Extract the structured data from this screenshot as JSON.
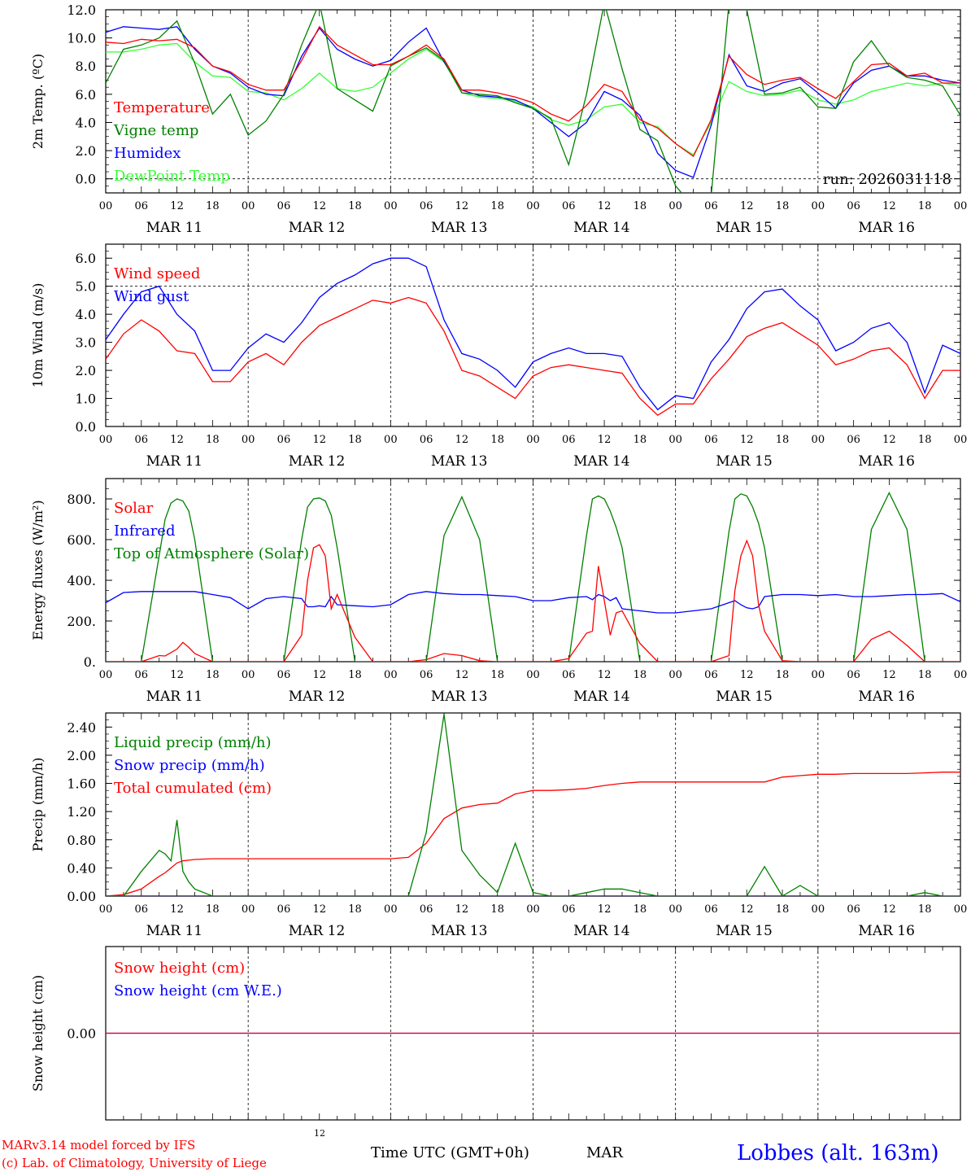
{
  "colors": {
    "red": "#ff0000",
    "green": "#008000",
    "blue": "#0000ff",
    "light_green": "#33ff33"
  },
  "footer": {
    "model_line": "MARv3.14 model forced by IFS",
    "lab_line": "(c) Lab. of Climatology, University of Liege",
    "small_label": "12",
    "time_label": "Time UTC (GMT+0h)",
    "month_label": "MAR",
    "station": "Lobbes (alt. 163m)"
  },
  "chart_data": [
    {
      "type": "line",
      "panel": "temperature",
      "ylabel": "2m Temp. (ºC)",
      "ylim": [
        -1.0,
        12.0
      ],
      "yticks": [
        "0.0",
        "2.0",
        "4.0",
        "6.0",
        "8.0",
        "10.0",
        "12.0"
      ],
      "reference_line": 0.0,
      "annotation": "run: 2026031118",
      "x_hours": [
        0,
        3,
        6,
        9,
        12,
        15,
        18,
        21,
        24,
        27,
        30,
        33,
        36,
        39,
        42,
        45,
        48,
        51,
        54,
        57,
        60,
        63,
        66,
        69,
        72,
        75,
        78,
        81,
        84,
        87,
        90,
        93,
        96,
        99,
        102,
        105,
        108,
        111,
        114,
        117,
        120,
        123,
        126,
        129,
        132,
        135,
        138,
        141,
        144
      ],
      "day_labels": [
        "MAR 11",
        "MAR 12",
        "MAR 13",
        "MAR 14",
        "MAR 15",
        "MAR 16"
      ],
      "hour_ticks": [
        "00",
        "06",
        "12",
        "18"
      ],
      "series": [
        {
          "name": "Temperature",
          "color": "#ff0000",
          "values": [
            9.7,
            9.6,
            9.9,
            9.8,
            9.9,
            9.3,
            8.0,
            7.6,
            6.7,
            6.3,
            6.3,
            8.4,
            10.8,
            9.5,
            8.8,
            8.1,
            8.1,
            8.7,
            9.5,
            8.5,
            6.3,
            6.3,
            6.1,
            5.8,
            5.4,
            4.6,
            4.1,
            5.2,
            6.7,
            6.2,
            4.2,
            3.6,
            2.5,
            1.6,
            4.2,
            8.7,
            7.4,
            6.7,
            7.0,
            7.2,
            6.4,
            5.7,
            6.9,
            8.1,
            8.2,
            7.3,
            7.5,
            6.8,
            6.8
          ]
        },
        {
          "name": "Vigne temp",
          "color": "#008000",
          "values": [
            6.8,
            9.2,
            9.5,
            10.0,
            11.2,
            8.2,
            4.6,
            6.0,
            3.1,
            4.1,
            6.0,
            9.5,
            12.5,
            6.4,
            5.6,
            4.8,
            8.0,
            8.7,
            9.3,
            8.4,
            6.1,
            6.0,
            5.9,
            5.4,
            5.0,
            4.3,
            1.0,
            6.0,
            12.5,
            7.8,
            3.5,
            2.7,
            -0.5,
            -2.0,
            -1.2,
            12.5,
            12.0,
            6.0,
            6.1,
            6.5,
            5.1,
            5.0,
            8.3,
            9.8,
            8.0,
            7.2,
            7.0,
            6.6,
            4.5
          ]
        },
        {
          "name": "Humidex",
          "color": "#0000ff",
          "values": [
            10.4,
            10.8,
            10.7,
            10.6,
            10.8,
            9.2,
            8.0,
            7.5,
            6.5,
            6.0,
            5.9,
            8.7,
            10.7,
            9.2,
            8.5,
            8.0,
            8.4,
            9.7,
            10.7,
            8.3,
            6.3,
            5.9,
            5.8,
            5.6,
            5.0,
            4.0,
            3.0,
            4.0,
            6.2,
            5.6,
            4.5,
            1.8,
            0.6,
            0.1,
            3.8,
            8.8,
            6.6,
            6.2,
            6.8,
            7.1,
            6.1,
            5.0,
            6.8,
            7.7,
            8.0,
            7.3,
            7.3,
            7.0,
            6.8
          ]
        },
        {
          "name": "DewPoint Temp",
          "color": "#33ff33",
          "values": [
            9.0,
            9.0,
            9.2,
            9.5,
            9.6,
            8.3,
            7.3,
            7.2,
            6.2,
            6.1,
            5.6,
            6.4,
            7.5,
            6.4,
            6.2,
            6.5,
            7.5,
            8.5,
            9.2,
            8.3,
            6.1,
            5.8,
            5.7,
            5.5,
            5.1,
            4.2,
            3.8,
            4.2,
            5.1,
            5.3,
            4.0,
            3.7,
            2.5,
            1.7,
            4.0,
            6.9,
            6.2,
            5.9,
            6.0,
            6.3,
            5.6,
            5.3,
            5.6,
            6.2,
            6.5,
            6.8,
            6.6,
            6.8,
            6.6
          ]
        }
      ]
    },
    {
      "type": "line",
      "panel": "wind",
      "ylabel": "10m Wind (m/s)",
      "ylim": [
        0.0,
        6.5
      ],
      "yticks": [
        "0.0",
        "1.0",
        "2.0",
        "3.0",
        "4.0",
        "5.0",
        "6.0"
      ],
      "reference_line": 5.0,
      "x_hours": [
        0,
        3,
        6,
        9,
        12,
        15,
        18,
        21,
        24,
        27,
        30,
        33,
        36,
        39,
        42,
        45,
        48,
        51,
        54,
        57,
        60,
        63,
        66,
        69,
        72,
        75,
        78,
        81,
        84,
        87,
        90,
        93,
        96,
        99,
        102,
        105,
        108,
        111,
        114,
        117,
        120,
        123,
        126,
        129,
        132,
        135,
        138,
        141,
        144
      ],
      "day_labels": [
        "MAR 11",
        "MAR 12",
        "MAR 13",
        "MAR 14",
        "MAR 15",
        "MAR 16"
      ],
      "hour_ticks": [
        "00",
        "06",
        "12",
        "18"
      ],
      "series": [
        {
          "name": "Wind speed",
          "color": "#ff0000",
          "values": [
            2.4,
            3.3,
            3.8,
            3.4,
            2.7,
            2.6,
            1.6,
            1.6,
            2.3,
            2.6,
            2.2,
            3.0,
            3.6,
            3.9,
            4.2,
            4.5,
            4.4,
            4.6,
            4.4,
            3.4,
            2.0,
            1.8,
            1.4,
            1.0,
            1.8,
            2.1,
            2.2,
            2.1,
            2.0,
            1.9,
            1.0,
            0.4,
            0.8,
            0.8,
            1.7,
            2.4,
            3.2,
            3.5,
            3.7,
            3.3,
            2.9,
            2.2,
            2.4,
            2.7,
            2.8,
            2.2,
            1.0,
            2.0,
            2.0
          ]
        },
        {
          "name": "Wind gust",
          "color": "#0000ff",
          "values": [
            3.1,
            4.0,
            4.8,
            5.0,
            4.0,
            3.4,
            2.0,
            2.0,
            2.8,
            3.3,
            3.0,
            3.7,
            4.6,
            5.1,
            5.4,
            5.8,
            6.0,
            6.0,
            5.7,
            3.8,
            2.6,
            2.4,
            2.0,
            1.4,
            2.3,
            2.6,
            2.8,
            2.6,
            2.6,
            2.5,
            1.4,
            0.6,
            1.1,
            1.0,
            2.3,
            3.1,
            4.2,
            4.8,
            4.9,
            4.3,
            3.8,
            2.7,
            3.0,
            3.5,
            3.7,
            3.0,
            1.2,
            2.9,
            2.6
          ]
        }
      ]
    },
    {
      "type": "line",
      "panel": "energy",
      "ylabel": "Energy fluxes (W/m²)",
      "ylim": [
        0,
        900
      ],
      "yticks": [
        "0.",
        "200.",
        "400.",
        "600.",
        "800."
      ],
      "x_hours": [
        0,
        3,
        6,
        9,
        10,
        11,
        12,
        13,
        14,
        15,
        18,
        21,
        24,
        27,
        30,
        33,
        34,
        35,
        36,
        37,
        38,
        39,
        42,
        45,
        48,
        51,
        54,
        57,
        60,
        63,
        66,
        69,
        72,
        75,
        78,
        81,
        82,
        83,
        84,
        85,
        86,
        87,
        90,
        93,
        96,
        99,
        102,
        105,
        106,
        107,
        108,
        109,
        110,
        111,
        114,
        117,
        120,
        123,
        126,
        129,
        132,
        135,
        138,
        141,
        144
      ],
      "day_labels": [
        "MAR 11",
        "MAR 12",
        "MAR 13",
        "MAR 14",
        "MAR 15",
        "MAR 16"
      ],
      "hour_ticks": [
        "00",
        "06",
        "12",
        "18"
      ],
      "series": [
        {
          "name": "Solar",
          "color": "#ff0000",
          "values": [
            0,
            0,
            0,
            30,
            28,
            45,
            62,
            95,
            70,
            40,
            0,
            0,
            0,
            0,
            0,
            130,
            400,
            560,
            575,
            520,
            260,
            330,
            120,
            0,
            0,
            0,
            10,
            40,
            30,
            5,
            0,
            0,
            0,
            0,
            15,
            140,
            150,
            470,
            300,
            130,
            240,
            250,
            90,
            0,
            0,
            0,
            0,
            30,
            350,
            520,
            595,
            520,
            280,
            150,
            5,
            0,
            0,
            0,
            0,
            110,
            150,
            80,
            0,
            0,
            0
          ]
        },
        {
          "name": "Infrared",
          "color": "#0000ff",
          "values": [
            290,
            340,
            345,
            345,
            345,
            345,
            345,
            345,
            345,
            345,
            330,
            315,
            260,
            310,
            320,
            310,
            270,
            270,
            275,
            270,
            320,
            280,
            275,
            270,
            280,
            330,
            345,
            335,
            330,
            330,
            325,
            320,
            300,
            300,
            315,
            320,
            305,
            330,
            320,
            300,
            315,
            260,
            250,
            240,
            240,
            250,
            260,
            290,
            300,
            280,
            265,
            260,
            270,
            320,
            330,
            330,
            325,
            330,
            320,
            320,
            325,
            330,
            330,
            335,
            295
          ]
        },
        {
          "name": "Top of Atmosphere (Solar)",
          "color": "#008000",
          "values": [
            0,
            0,
            0,
            520,
            700,
            780,
            800,
            790,
            740,
            600,
            0,
            0,
            0,
            0,
            0,
            600,
            760,
            800,
            805,
            790,
            720,
            560,
            0,
            0,
            0,
            0,
            0,
            620,
            810,
            600,
            0,
            0,
            0,
            0,
            0,
            620,
            800,
            815,
            800,
            740,
            660,
            560,
            0,
            0,
            0,
            0,
            0,
            640,
            800,
            825,
            815,
            760,
            680,
            560,
            0,
            0,
            0,
            0,
            0,
            650,
            830,
            650,
            0,
            0,
            0
          ]
        }
      ]
    },
    {
      "type": "line",
      "panel": "precip",
      "ylabel": "Precip (mm/h)",
      "ylim": [
        0.0,
        2.6
      ],
      "yticks": [
        "0.00",
        "0.40",
        "0.80",
        "1.20",
        "1.60",
        "2.00",
        "2.40"
      ],
      "x_hours": [
        0,
        3,
        6,
        9,
        10,
        11,
        12,
        13,
        14,
        15,
        18,
        21,
        24,
        27,
        30,
        33,
        36,
        39,
        42,
        45,
        48,
        51,
        54,
        57,
        60,
        63,
        66,
        69,
        72,
        75,
        78,
        81,
        84,
        87,
        90,
        93,
        96,
        99,
        102,
        105,
        108,
        111,
        114,
        117,
        120,
        123,
        126,
        129,
        132,
        135,
        138,
        141,
        144
      ],
      "day_labels": [
        "MAR 11",
        "MAR 12",
        "MAR 13",
        "MAR 14",
        "MAR 15",
        "MAR 16"
      ],
      "hour_ticks": [
        "00",
        "06",
        "12",
        "18"
      ],
      "series": [
        {
          "name": "Liquid precip (mm/h)",
          "color": "#008000",
          "values": [
            0,
            0,
            0.35,
            0.65,
            0.6,
            0.5,
            1.08,
            0.35,
            0.2,
            0.1,
            0,
            0,
            0,
            0,
            0,
            0,
            0,
            0,
            0,
            0,
            0,
            0,
            0.9,
            2.58,
            0.65,
            0.3,
            0.05,
            0.75,
            0.05,
            0,
            0,
            0.05,
            0.1,
            0.1,
            0.05,
            0,
            0,
            0,
            0,
            0,
            0,
            0.42,
            0,
            0.15,
            0,
            0,
            0,
            0,
            0,
            0,
            0.05,
            0,
            0
          ]
        },
        {
          "name": "Snow precip (mm/h)",
          "color": "#0000ff",
          "values": [
            0,
            0,
            0,
            0,
            0,
            0,
            0,
            0,
            0,
            0,
            0,
            0,
            0,
            0,
            0,
            0,
            0,
            0,
            0,
            0,
            0,
            0,
            0,
            0,
            0,
            0,
            0,
            0,
            0,
            0,
            0,
            0,
            0,
            0,
            0,
            0,
            0,
            0,
            0,
            0,
            0,
            0,
            0,
            0,
            0,
            0,
            0,
            0,
            0,
            0,
            0,
            0,
            0
          ]
        },
        {
          "name": "Total cumulated (cm)",
          "color": "#ff0000",
          "values": [
            0,
            0.02,
            0.1,
            0.28,
            0.33,
            0.4,
            0.47,
            0.5,
            0.51,
            0.52,
            0.53,
            0.53,
            0.53,
            0.53,
            0.53,
            0.53,
            0.53,
            0.53,
            0.53,
            0.53,
            0.53,
            0.55,
            0.75,
            1.1,
            1.25,
            1.3,
            1.32,
            1.45,
            1.5,
            1.5,
            1.51,
            1.53,
            1.57,
            1.6,
            1.62,
            1.62,
            1.62,
            1.62,
            1.62,
            1.62,
            1.62,
            1.62,
            1.69,
            1.71,
            1.73,
            1.73,
            1.74,
            1.74,
            1.74,
            1.74,
            1.75,
            1.76,
            1.76
          ]
        }
      ]
    },
    {
      "type": "line",
      "panel": "snow",
      "ylabel": "Snow height (cm)",
      "ylim": [
        -1.0,
        1.0
      ],
      "yticks": [
        "0.00"
      ],
      "x_hours": [
        0,
        144
      ],
      "series": [
        {
          "name": "Snow height (cm)",
          "color": "#ff0000",
          "values": [
            0,
            0
          ]
        },
        {
          "name": "Snow height (cm W.E.)",
          "color": "#0000ff",
          "values": [
            0,
            0
          ]
        }
      ]
    }
  ]
}
